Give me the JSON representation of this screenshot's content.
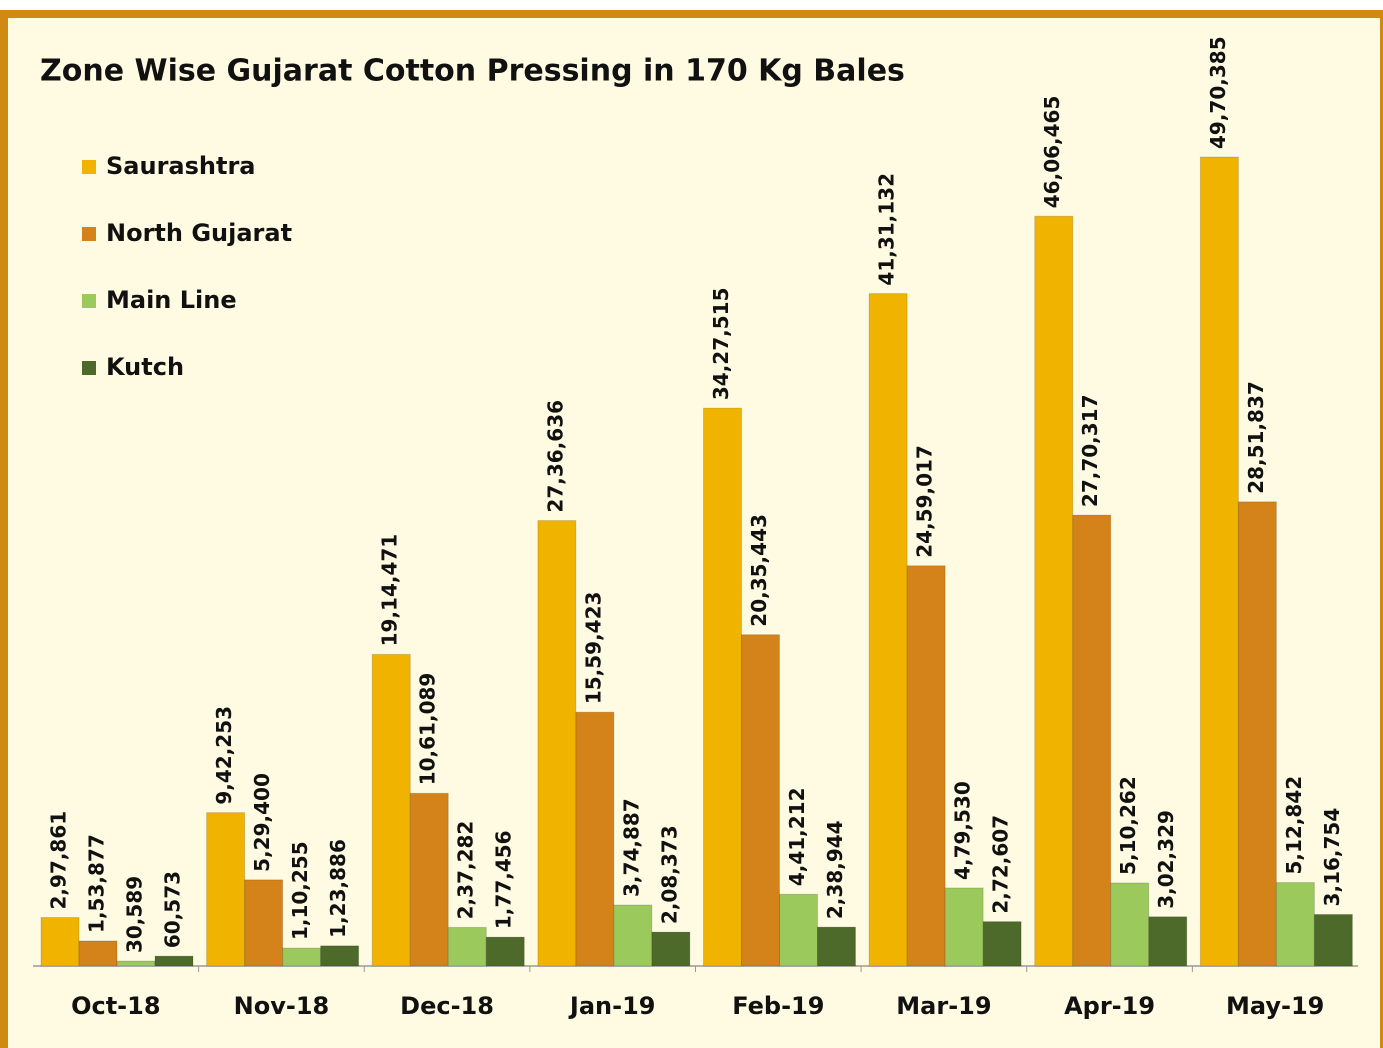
{
  "chart_data": {
    "type": "bar",
    "title": "Zone Wise Gujarat Cotton Pressing in 170 Kg Bales",
    "categories": [
      "Oct-18",
      "Nov-18",
      "Dec-18",
      "Jan-19",
      "Feb-19",
      "Mar-19",
      "Apr-19",
      "May-19"
    ],
    "series": [
      {
        "name": "Saurashtra",
        "color": "#f0b400",
        "values": [
          297861,
          942253,
          1914471,
          2736636,
          3427515,
          4131132,
          4606465,
          4970385
        ],
        "value_labels": [
          "2,97,861",
          "9,42,253",
          "19,14,471",
          "27,36,636",
          "34,27,515",
          "41,31,132",
          "46,06,465",
          "49,70,385"
        ]
      },
      {
        "name": "North Gujarat",
        "color": "#d4831a",
        "values": [
          153877,
          529400,
          1061089,
          1559423,
          2035443,
          2459017,
          2770317,
          2851837
        ],
        "value_labels": [
          "1,53,877",
          "5,29,400",
          "10,61,089",
          "15,59,423",
          "20,35,443",
          "24,59,017",
          "27,70,317",
          "28,51,837"
        ]
      },
      {
        "name": "Main Line",
        "color": "#9cc95c",
        "values": [
          30589,
          110255,
          237282,
          374887,
          441212,
          479530,
          510262,
          512842
        ],
        "value_labels": [
          "30,589",
          "1,10,255",
          "2,37,282",
          "3,74,887",
          "4,41,212",
          "4,79,530",
          "5,10,262",
          "5,12,842"
        ]
      },
      {
        "name": "Kutch",
        "color": "#4d6a2a",
        "values": [
          60573,
          123886,
          177456,
          208373,
          238944,
          272607,
          302329,
          316754
        ],
        "value_labels": [
          "60,573",
          "1,23,886",
          "1,77,456",
          "2,08,373",
          "2,38,944",
          "2,72,607",
          "3,02,329",
          "3,16,754"
        ]
      }
    ]
  }
}
